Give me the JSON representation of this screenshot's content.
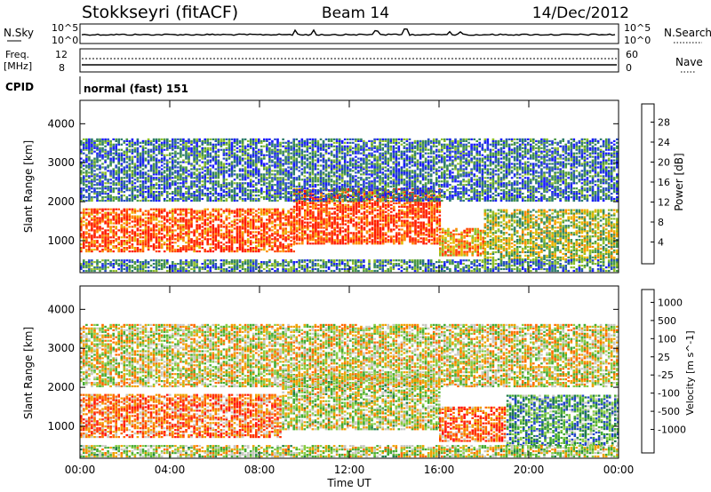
{
  "header": {
    "station": "Stokkseyri (fitACF)",
    "beam": "Beam 14",
    "date": "14/Dec/2012"
  },
  "panels": {
    "nsky": {
      "label": "N.Sky",
      "tick_top": "10^5",
      "tick_bottom": "10^0"
    },
    "nsearch": {
      "label": "N.Search",
      "tick_top": "10^5",
      "tick_bottom": "10^0"
    },
    "freq": {
      "label_line1": "Freq.",
      "label_line2": "[MHz]",
      "tick_top": "12",
      "tick_bottom": "8"
    },
    "nave": {
      "label": "Nave",
      "tick_top": "60",
      "tick_bottom": "0"
    },
    "cpid": {
      "label": "CPID",
      "value": "normal (fast) 151"
    }
  },
  "chart_data": [
    {
      "type": "heatmap",
      "title": "",
      "xlabel": "",
      "ylabel": "Slant Range [km]",
      "x_ticks": [
        "00:00",
        "04:00",
        "08:00",
        "12:00",
        "16:00",
        "20:00",
        "00:00"
      ],
      "y_ticks": [
        "1000",
        "2000",
        "3000",
        "4000"
      ],
      "ylim": [
        180,
        4600
      ],
      "xlim": [
        0,
        24
      ],
      "colorbar": {
        "label": "Power [dB]",
        "ticks": [
          "4",
          "8",
          "12",
          "16",
          "20",
          "24",
          "28"
        ],
        "colors": [
          "#1a1aff",
          "#2a4fc4",
          "#2e7d6b",
          "#4c9a44",
          "#8fbf2a",
          "#e6b800",
          "#ff8c00",
          "#ff4500",
          "#ff1a00"
        ]
      },
      "bands": [
        {
          "t0": 0.0,
          "t1": 9.5,
          "r0": 700,
          "r1": 1800,
          "level": 0.85
        },
        {
          "t0": 9.5,
          "t1": 16.0,
          "r0": 900,
          "r1": 2300,
          "level": 0.9
        },
        {
          "t0": 16.0,
          "t1": 18.0,
          "r0": 600,
          "r1": 1300,
          "level": 0.7
        },
        {
          "t0": 18.0,
          "t1": 24.0,
          "r0": 500,
          "r1": 1800,
          "level": 0.5
        },
        {
          "t0": 0.0,
          "t1": 24.0,
          "r0": 2000,
          "r1": 3600,
          "level": 0.25
        },
        {
          "t0": 0.0,
          "t1": 24.0,
          "r0": 200,
          "r1": 500,
          "level": 0.3
        }
      ]
    },
    {
      "type": "heatmap",
      "title": "",
      "xlabel": "Time UT",
      "ylabel": "Slant Range [km]",
      "x_ticks": [
        "00:00",
        "04:00",
        "08:00",
        "12:00",
        "16:00",
        "20:00",
        "00:00"
      ],
      "y_ticks": [
        "1000",
        "2000",
        "3000",
        "4000"
      ],
      "ylim": [
        180,
        4600
      ],
      "xlim": [
        0,
        24
      ],
      "colorbar": {
        "label": "Velocity [m s^-1]",
        "ticks": [
          "1000",
          "500",
          "100",
          "25",
          "-25",
          "-100",
          "-500",
          "-1000"
        ],
        "colors": [
          "#2244cc",
          "#1f7a4a",
          "#44aa33",
          "#88cc44",
          "#c8c8c0",
          "#f0a000",
          "#ff6a00",
          "#ff3300",
          "#ff1010"
        ]
      },
      "bands": [
        {
          "t0": 0.0,
          "t1": 9.0,
          "r0": 700,
          "r1": 1800,
          "level": 0.72
        },
        {
          "t0": 9.0,
          "t1": 16.0,
          "r0": 900,
          "r1": 2300,
          "level": 0.45
        },
        {
          "t0": 16.0,
          "t1": 19.0,
          "r0": 600,
          "r1": 1500,
          "level": 0.75
        },
        {
          "t0": 19.0,
          "t1": 24.0,
          "r0": 500,
          "r1": 1800,
          "level": 0.25
        },
        {
          "t0": 0.0,
          "t1": 24.0,
          "r0": 2000,
          "r1": 3600,
          "level": 0.5
        },
        {
          "t0": 0.0,
          "t1": 24.0,
          "r0": 200,
          "r1": 500,
          "level": 0.45
        }
      ]
    }
  ]
}
